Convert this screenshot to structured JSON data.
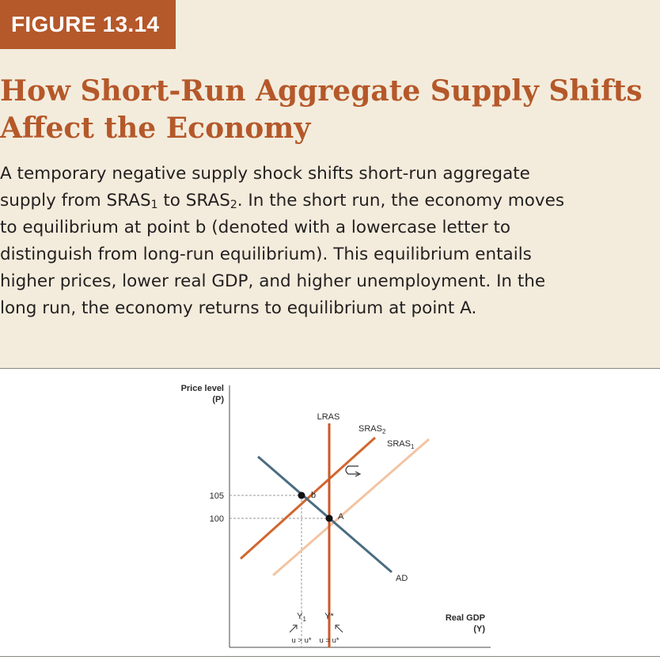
{
  "figure_label": "FIGURE 13.14",
  "title_line1": "How Short-Run Aggregate Supply Shifts",
  "title_line2": "Affect the Economy",
  "caption": {
    "line1": "A temporary negative supply shock shifts short-run aggregate",
    "line2_a": "supply from SRAS",
    "line2_sub1": "1",
    "line2_b": " to SRAS",
    "line2_sub2": "2",
    "line2_c": ". In the short run, the economy moves",
    "line3": "to equilibrium at point b (denoted with a lowercase letter to",
    "line4": "distinguish from long-run equilibrium). This equilibrium entails",
    "line5": "higher prices, lower real GDP, and higher unemployment. In the",
    "line6": "long run, the economy returns to equilibrium at point A."
  },
  "colors": {
    "accent": "#b5582a",
    "lras": "#c85a2a",
    "sras2": "#d2662e",
    "sras1": "#f2c4a2",
    "ad": "#4a6c80"
  },
  "chart_data": {
    "type": "line",
    "ylabel": "Price level",
    "ylabel_sub": "(P)",
    "xlabel": "Real GDP",
    "xlabel_sub": "(Y)",
    "y_ticks": [
      {
        "value": 105,
        "label": "105"
      },
      {
        "value": 100,
        "label": "100"
      }
    ],
    "x_ticks": [
      {
        "key": "Y1",
        "label": "Y",
        "sub": "1",
        "note": "u > u*"
      },
      {
        "key": "Ystar",
        "label": "Y*",
        "sub": "",
        "note": "u = u*"
      }
    ],
    "curves": {
      "lras": {
        "name": "LRAS"
      },
      "sras2": {
        "name": "SRAS",
        "sub": "2"
      },
      "sras1": {
        "name": "SRAS",
        "sub": "1"
      },
      "ad": {
        "name": "AD"
      }
    },
    "points": [
      {
        "label": "b",
        "price": 105,
        "output": "Y1"
      },
      {
        "label": "A",
        "price": 100,
        "output": "Ystar"
      }
    ],
    "shift_direction": "rightward return arrow from SRAS2 toward SRAS1"
  }
}
